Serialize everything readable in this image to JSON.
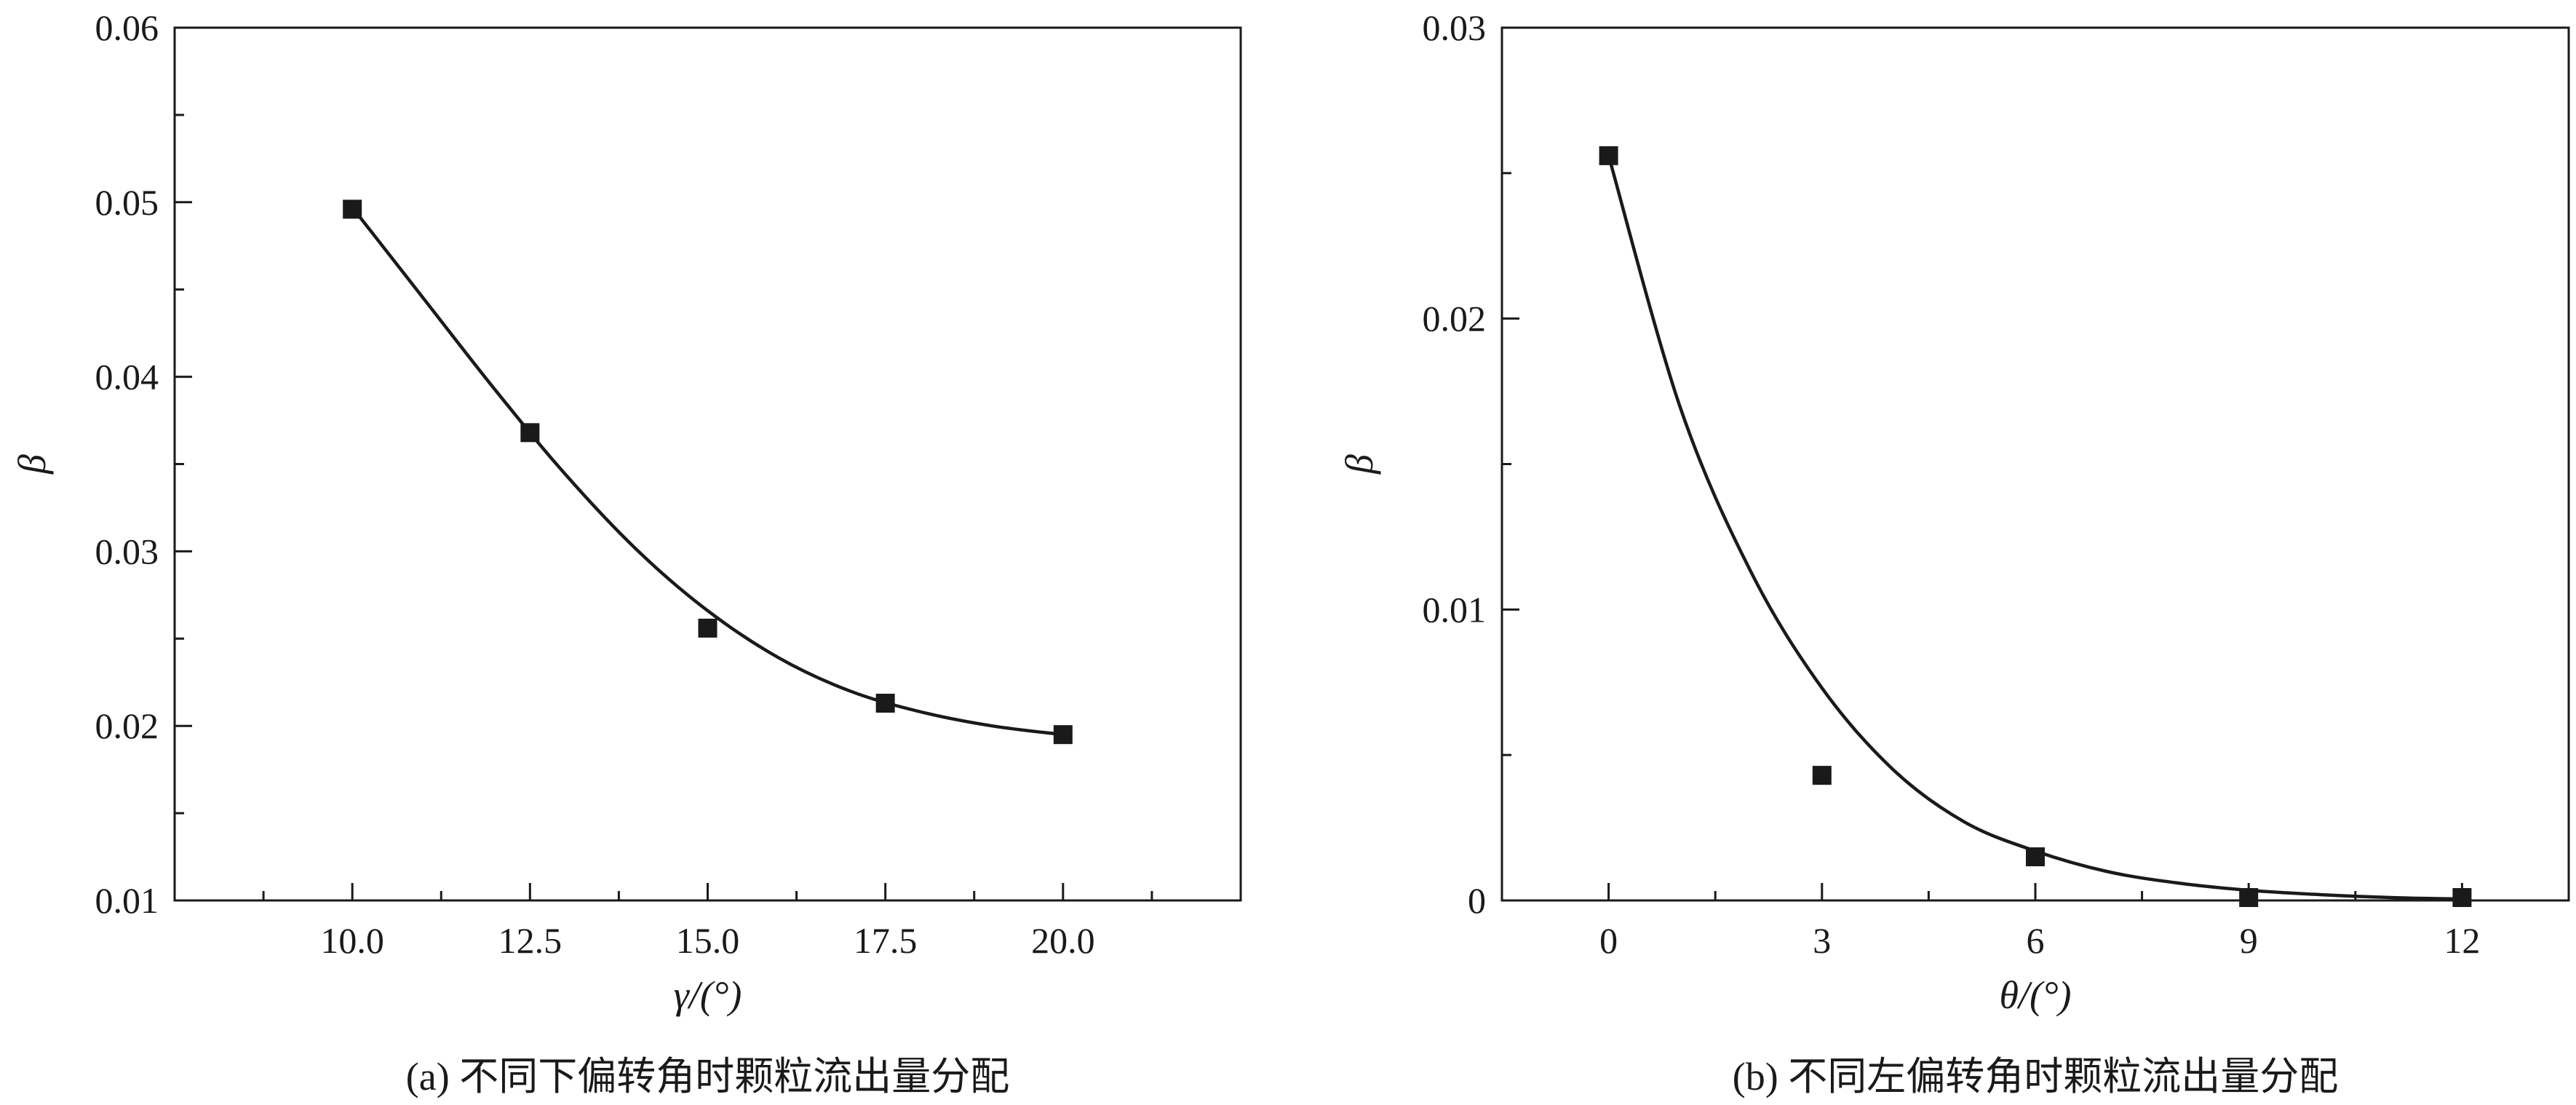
{
  "chart_data": [
    {
      "type": "scatter",
      "caption": "(a) 不同下偏转角时颗粒流出量分配",
      "xlabel": "γ/(°)",
      "ylabel": "β",
      "xlim": [
        7.5,
        22.5
      ],
      "ylim": [
        0.01,
        0.06
      ],
      "x_ticks": [
        10.0,
        12.5,
        15.0,
        17.5,
        20.0
      ],
      "x_tick_labels": [
        "10.0",
        "12.5",
        "15.0",
        "17.5",
        "20.0"
      ],
      "y_ticks": [
        0.01,
        0.02,
        0.03,
        0.04,
        0.05,
        0.06
      ],
      "y_tick_labels": [
        "0.01",
        "0.02",
        "0.03",
        "0.04",
        "0.05",
        "0.06"
      ],
      "grid": false,
      "series": [
        {
          "kind": "points",
          "marker": "square",
          "x": [
            10.0,
            12.5,
            15.0,
            17.5,
            20.0
          ],
          "y": [
            0.0496,
            0.0368,
            0.0256,
            0.0213,
            0.0195
          ]
        },
        {
          "kind": "fit-curve",
          "x": [
            10.0,
            11.0,
            12.0,
            13.0,
            14.0,
            15.0,
            16.0,
            17.0,
            18.0,
            19.0,
            20.0
          ],
          "y": [
            0.0497,
            0.0445,
            0.0393,
            0.0344,
            0.0301,
            0.0266,
            0.0239,
            0.022,
            0.0208,
            0.02,
            0.0195
          ]
        }
      ]
    },
    {
      "type": "scatter",
      "caption": "(b) 不同左偏转角时颗粒流出量分配",
      "xlabel": "θ/(°)",
      "ylabel": "β",
      "xlim": [
        -1.5,
        13.5
      ],
      "ylim": [
        0,
        0.03
      ],
      "x_ticks": [
        0,
        3,
        6,
        9,
        12
      ],
      "x_tick_labels": [
        "0",
        "3",
        "6",
        "9",
        "12"
      ],
      "y_ticks": [
        0,
        0.01,
        0.02,
        0.03
      ],
      "y_tick_labels": [
        "0",
        "0.01",
        "0.02",
        "0.03"
      ],
      "grid": false,
      "series": [
        {
          "kind": "points",
          "marker": "square",
          "x": [
            0,
            3,
            6,
            9,
            12
          ],
          "y": [
            0.0256,
            0.0043,
            0.0015,
            0.0001,
            0.0001
          ]
        },
        {
          "kind": "fit-curve",
          "x": [
            0,
            1,
            2,
            3,
            4,
            5,
            6,
            7,
            8,
            9,
            10,
            11,
            12
          ],
          "y": [
            0.0256,
            0.017,
            0.0113,
            0.0073,
            0.0045,
            0.0027,
            0.0017,
            0.001,
            0.0006,
            0.00035,
            0.0002,
            0.0001,
            5e-05
          ]
        }
      ]
    }
  ]
}
